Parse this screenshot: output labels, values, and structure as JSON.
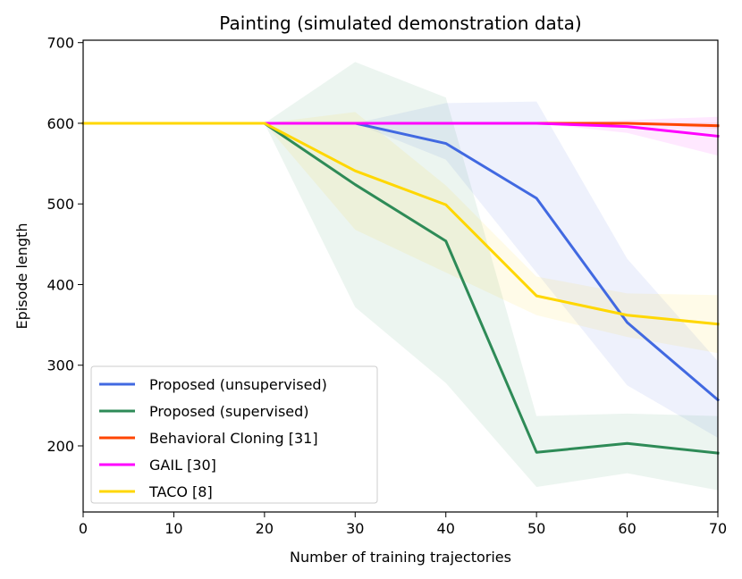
{
  "chart_data": {
    "type": "line",
    "title": "Painting (simulated demonstration data)",
    "xlabel": "Number of training trajectories",
    "ylabel": "Episode length",
    "xlim": [
      0,
      70
    ],
    "ylim": [
      118,
      703
    ],
    "xticks": [
      0,
      10,
      20,
      30,
      40,
      50,
      60,
      70
    ],
    "yticks": [
      200,
      300,
      400,
      500,
      600,
      700
    ],
    "grid": false,
    "legend_position": "lower-left",
    "x": [
      0,
      20,
      30,
      40,
      50,
      60,
      70
    ],
    "series": [
      {
        "name": "Proposed (unsupervised)",
        "color": "#4169e1",
        "values": [
          600,
          600,
          600,
          575,
          507,
          353,
          257
        ],
        "lower": [
          600,
          600,
          600,
          555,
          415,
          275,
          210
        ],
        "upper": [
          600,
          600,
          600,
          625,
          627,
          432,
          305
        ]
      },
      {
        "name": "Proposed (supervised)",
        "color": "#2e8b57",
        "values": [
          600,
          600,
          524,
          454,
          192,
          203,
          191
        ],
        "lower": [
          600,
          600,
          372,
          278,
          149,
          166,
          145
        ],
        "upper": [
          600,
          600,
          676,
          632,
          237,
          240,
          237
        ]
      },
      {
        "name": "Behavioral Cloning [31]",
        "color": "#ff4500",
        "values": [
          600,
          600,
          600,
          600,
          600,
          600,
          597
        ],
        "lower": [
          600,
          600,
          600,
          600,
          600,
          600,
          593
        ],
        "upper": [
          600,
          600,
          600,
          600,
          600,
          600,
          601
        ]
      },
      {
        "name": "GAIL [30]",
        "color": "#ff00ff",
        "values": [
          600,
          600,
          600,
          600,
          600,
          596,
          584
        ],
        "lower": [
          600,
          600,
          600,
          600,
          600,
          588,
          560
        ],
        "upper": [
          600,
          600,
          600,
          600,
          600,
          604,
          608
        ]
      },
      {
        "name": "TACO [8]",
        "color": "#ffd700",
        "values": [
          600,
          600,
          541,
          499,
          386,
          362,
          351
        ],
        "lower": [
          600,
          600,
          468,
          415,
          362,
          335,
          315
        ],
        "upper": [
          600,
          600,
          614,
          523,
          410,
          389,
          387
        ]
      }
    ]
  }
}
